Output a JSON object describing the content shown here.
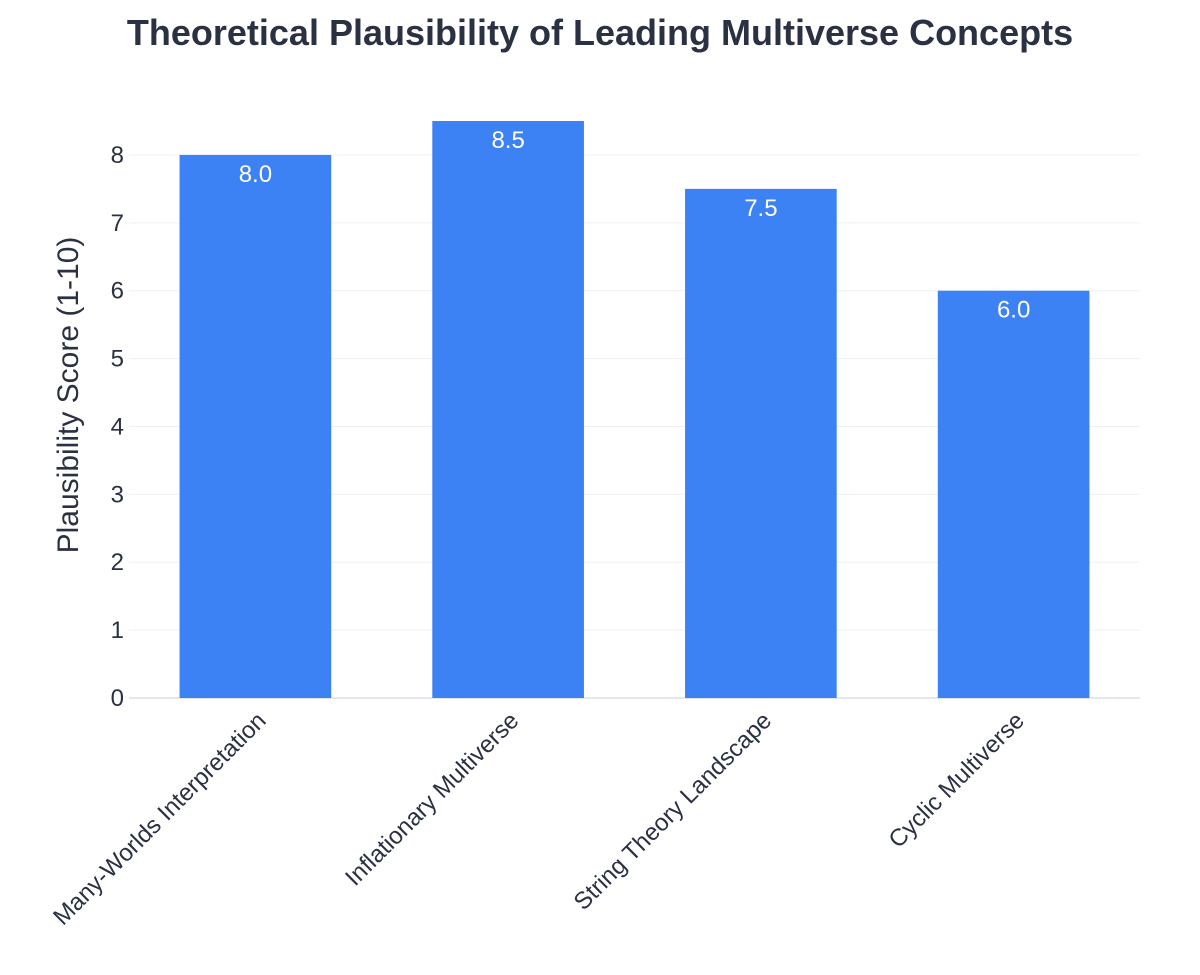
{
  "chart_data": {
    "type": "bar",
    "title": "Theoretical Plausibility of Leading Multiverse Concepts",
    "ylabel": "Plausibility Score (1-10)",
    "xlabel": "",
    "categories": [
      "Many-Worlds Interpretation",
      "Inflationary Multiverse",
      "String Theory Landscape",
      "Cyclic Multiverse"
    ],
    "values": [
      8.0,
      8.5,
      7.5,
      6.0
    ],
    "value_labels": [
      "8.0",
      "8.5",
      "7.5",
      "6.0"
    ],
    "ylim": [
      0,
      8.5
    ],
    "yticks": [
      0,
      1,
      2,
      3,
      4,
      5,
      6,
      7,
      8
    ],
    "grid": true,
    "legend": "none",
    "colors": {
      "bar": "#3d82f5",
      "text": "#2a3142",
      "bar_label": "#ffffff",
      "grid": "#eef0f4"
    }
  }
}
